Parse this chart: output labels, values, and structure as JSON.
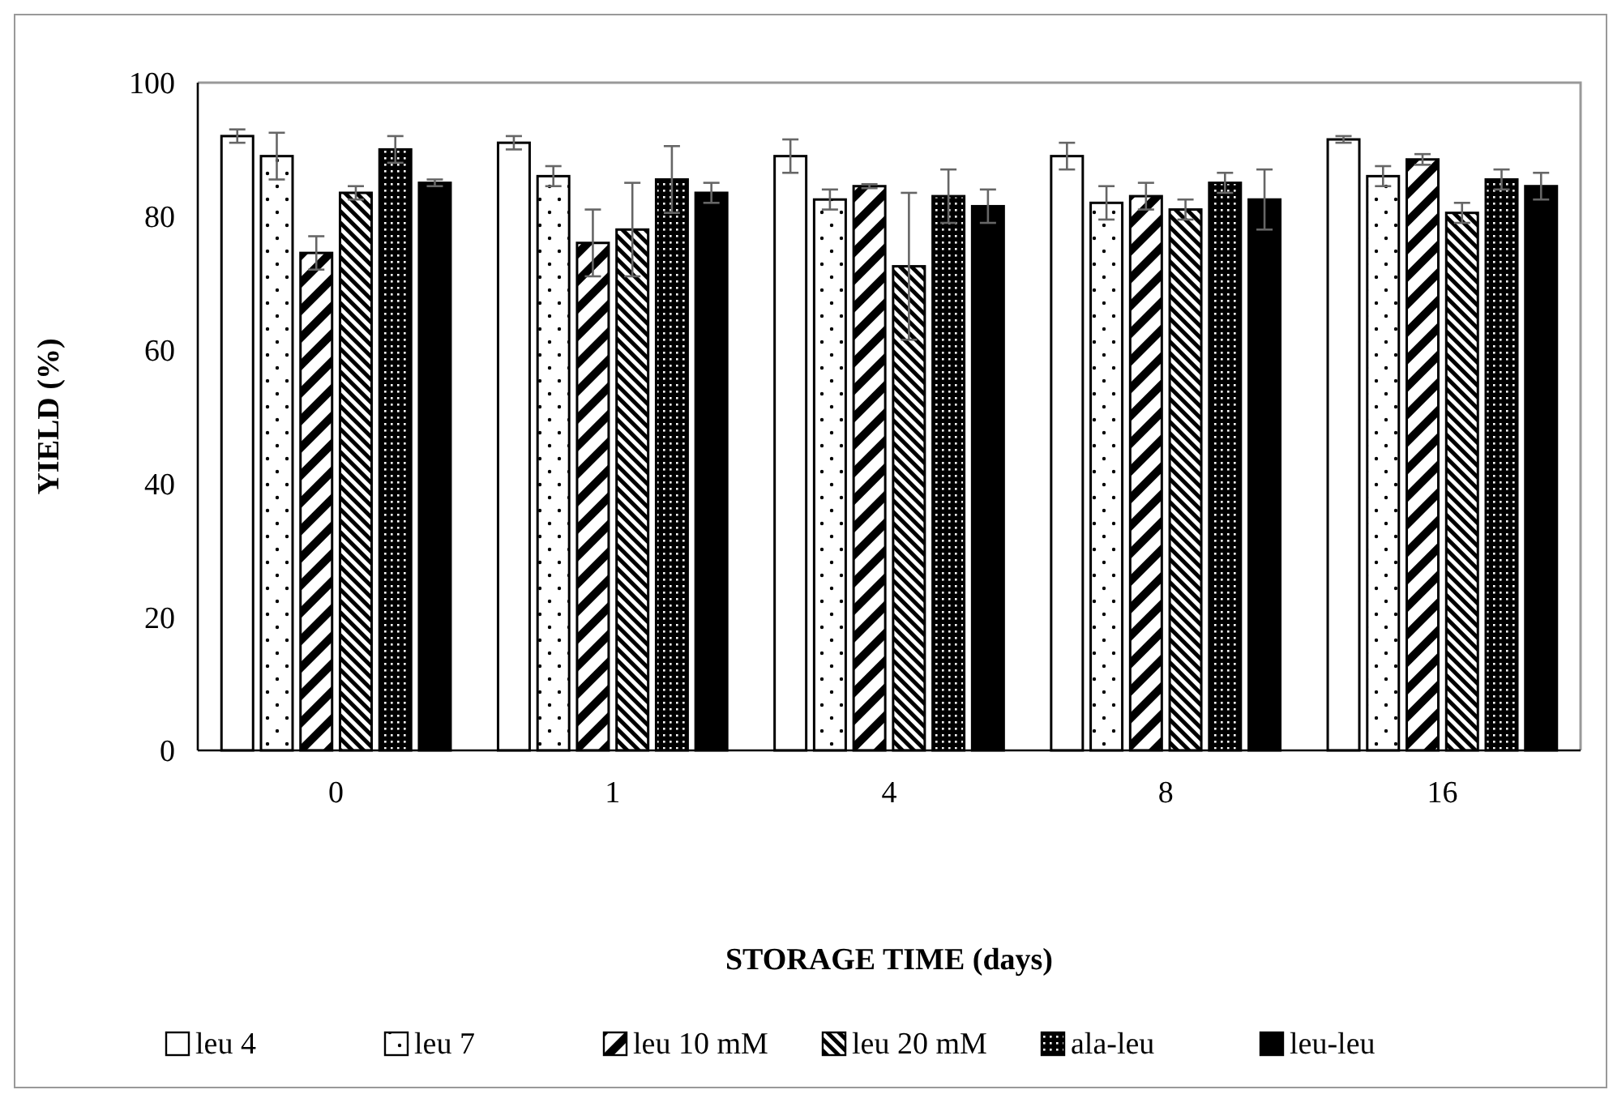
{
  "chart_data": {
    "type": "bar",
    "xlabel": "STORAGE TIME (days)",
    "ylabel": "YIELD (%)",
    "categories": [
      "0",
      "1",
      "4",
      "8",
      "16"
    ],
    "ylim": [
      0,
      100
    ],
    "yticks": [
      0,
      20,
      40,
      60,
      80,
      100
    ],
    "grid": false,
    "legend": "bottom",
    "series": [
      {
        "name": "leu 4",
        "color": "#ffffff",
        "values": [
          92,
          91,
          89,
          89,
          91.5
        ],
        "errors": [
          1,
          1,
          2.5,
          2,
          0.5
        ]
      },
      {
        "name": "leu 7",
        "color": "#000000",
        "values": [
          89,
          86,
          82.5,
          82,
          86
        ],
        "errors": [
          3.5,
          1.5,
          1.5,
          2.5,
          1.5
        ]
      },
      {
        "name": "leu 10 mM",
        "color": "#000000",
        "values": [
          74.5,
          76,
          84.5,
          83,
          88.5
        ],
        "errors": [
          2.5,
          5,
          0.3,
          2,
          0.8
        ]
      },
      {
        "name": "leu 20 mM",
        "color": "#000000",
        "values": [
          83.5,
          78,
          72.5,
          81,
          80.5
        ],
        "errors": [
          1,
          7,
          11,
          1.5,
          1.5
        ]
      },
      {
        "name": "ala-leu",
        "color": "#000000",
        "values": [
          90,
          85.5,
          83,
          85,
          85.5
        ],
        "errors": [
          2,
          5,
          4,
          1.5,
          1.5
        ]
      },
      {
        "name": "leu-leu",
        "color": "#000000",
        "values": [
          85,
          83.5,
          81.5,
          82.5,
          84.5
        ],
        "errors": [
          0.5,
          1.5,
          2.5,
          4.5,
          2
        ]
      }
    ]
  }
}
